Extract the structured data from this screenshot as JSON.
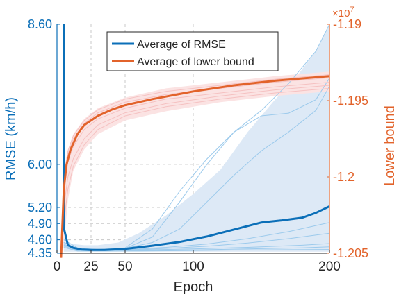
{
  "chart_data": {
    "type": "line",
    "xlabel": "Epoch",
    "ylabel_left": "RMSE (km/h)",
    "ylabel_right": "Lower bound",
    "right_axis_exponent": "×10",
    "right_axis_exponent_power": "7",
    "xlim": [
      0,
      200
    ],
    "ylim_left": [
      4.35,
      8.6
    ],
    "ylim_right": [
      -1.205,
      -1.19
    ],
    "x_ticks": [
      0,
      25,
      50,
      100,
      200
    ],
    "x_tick_labels": [
      "0",
      "25",
      "50",
      "100",
      "200"
    ],
    "y_left_ticks": [
      4.35,
      4.6,
      4.9,
      5.2,
      6.0,
      8.6
    ],
    "y_left_tick_labels": [
      "4.35",
      "4.60",
      "4.90",
      "5.20",
      "6.00",
      "8.60"
    ],
    "y_right_ticks": [
      -1.205,
      -1.2,
      -1.195,
      -1.19
    ],
    "y_right_tick_labels": [
      "-1.205",
      "-1.2",
      "-1.195",
      "-1.19"
    ],
    "grid": true,
    "legend_position": "top-center",
    "legend": [
      "Average of RMSE",
      "Average of lower bound"
    ],
    "colors": {
      "rmse": "#0b6fb8",
      "rmse_light": "#9ccaec",
      "rmse_band": "#dde9f6",
      "lower": "#e2632b",
      "lower_light": "#f5c1c1",
      "lower_band": "#fbe3e3",
      "grid": "#c8c8c8",
      "axis": "#262626"
    },
    "series": [
      {
        "name": "Average of RMSE",
        "axis": "left",
        "x": [
          5,
          8,
          12,
          18,
          25,
          35,
          50,
          70,
          90,
          110,
          130,
          150,
          165,
          180,
          190,
          200
        ],
        "y": [
          4.82,
          4.5,
          4.45,
          4.42,
          4.41,
          4.41,
          4.43,
          4.49,
          4.56,
          4.66,
          4.79,
          4.92,
          4.96,
          5.01,
          5.1,
          5.22
        ]
      },
      {
        "name": "Average of lower bound",
        "axis": "right",
        "x": [
          3,
          5,
          7,
          10,
          15,
          20,
          30,
          40,
          50,
          70,
          100,
          130,
          160,
          200
        ],
        "y": [
          -1.2053,
          -1.2008,
          -1.1992,
          -1.1982,
          -1.1972,
          -1.1966,
          -1.196,
          -1.1956,
          -1.1953,
          -1.1949,
          -1.1944,
          -1.194,
          -1.1937,
          -1.1934
        ]
      }
    ],
    "rmse_band": {
      "x": [
        5,
        8,
        12,
        20,
        30,
        45,
        60,
        80,
        100,
        120,
        140,
        160,
        175,
        190,
        200
      ],
      "lower": [
        4.38,
        4.38,
        4.38,
        4.38,
        4.38,
        4.38,
        4.38,
        4.38,
        4.38,
        4.38,
        4.38,
        4.38,
        4.38,
        4.38,
        4.38
      ],
      "upper": [
        4.62,
        4.55,
        4.52,
        4.5,
        4.5,
        4.55,
        4.72,
        5.05,
        5.45,
        5.9,
        6.6,
        7.2,
        7.6,
        8.1,
        8.6
      ]
    },
    "lower_band": {
      "x": [
        3,
        5,
        8,
        12,
        20,
        30,
        50,
        80,
        120,
        160,
        200
      ],
      "lower": [
        -1.2053,
        -1.2045,
        -1.2015,
        -1.1996,
        -1.1982,
        -1.1972,
        -1.1963,
        -1.1957,
        -1.1951,
        -1.1947,
        -1.1944
      ],
      "upper": [
        -1.2053,
        -1.1998,
        -1.1982,
        -1.1972,
        -1.1962,
        -1.1955,
        -1.1948,
        -1.1942,
        -1.1938,
        -1.1934,
        -1.1931
      ]
    },
    "rmse_runs": [
      {
        "x": [
          5,
          15,
          30,
          50,
          70,
          90,
          110,
          130,
          150,
          170,
          190,
          200
        ],
        "y": [
          4.6,
          4.45,
          4.42,
          4.45,
          4.8,
          5.5,
          6.1,
          6.6,
          7.0,
          7.5,
          8.1,
          8.6
        ]
      },
      {
        "x": [
          5,
          15,
          30,
          50,
          70,
          90,
          110,
          130,
          150,
          170,
          190,
          200
        ],
        "y": [
          4.55,
          4.43,
          4.41,
          4.44,
          4.65,
          5.3,
          6.0,
          6.6,
          6.9,
          6.95,
          7.2,
          7.6
        ]
      },
      {
        "x": [
          5,
          15,
          30,
          50,
          70,
          90,
          110,
          130,
          150,
          170,
          190,
          200
        ],
        "y": [
          4.55,
          4.43,
          4.41,
          4.44,
          4.55,
          4.8,
          5.3,
          5.8,
          6.25,
          6.6,
          7.0,
          7.45
        ]
      },
      {
        "x": [
          5,
          15,
          30,
          50,
          80,
          110,
          140,
          170,
          200
        ],
        "y": [
          4.55,
          4.42,
          4.41,
          4.42,
          4.46,
          4.52,
          4.62,
          4.75,
          4.92
        ]
      },
      {
        "x": [
          5,
          15,
          30,
          50,
          80,
          110,
          140,
          170,
          200
        ],
        "y": [
          4.52,
          4.41,
          4.4,
          4.41,
          4.44,
          4.48,
          4.54,
          4.62,
          4.72
        ]
      },
      {
        "x": [
          5,
          15,
          30,
          60,
          100,
          140,
          180,
          200
        ],
        "y": [
          4.5,
          4.41,
          4.4,
          4.41,
          4.43,
          4.46,
          4.5,
          4.53
        ]
      },
      {
        "x": [
          5,
          15,
          30,
          60,
          100,
          140,
          180,
          200
        ],
        "y": [
          4.48,
          4.4,
          4.39,
          4.4,
          4.41,
          4.43,
          4.45,
          4.47
        ]
      },
      {
        "x": [
          5,
          15,
          30,
          60,
          100,
          140,
          200
        ],
        "y": [
          4.46,
          4.39,
          4.39,
          4.39,
          4.4,
          4.41,
          4.42
        ]
      }
    ],
    "lower_runs": [
      {
        "x": [
          3,
          5,
          8,
          12,
          20,
          30,
          50,
          80,
          120,
          160,
          200
        ],
        "y": [
          -1.2053,
          -1.2002,
          -1.1985,
          -1.1975,
          -1.1965,
          -1.1958,
          -1.1951,
          -1.1946,
          -1.1942,
          -1.1938,
          -1.1935
        ]
      },
      {
        "x": [
          3,
          5,
          8,
          12,
          20,
          30,
          50,
          80,
          120,
          160,
          200
        ],
        "y": [
          -1.2053,
          -1.201,
          -1.199,
          -1.198,
          -1.1969,
          -1.1962,
          -1.1955,
          -1.1949,
          -1.1945,
          -1.1941,
          -1.1938
        ]
      },
      {
        "x": [
          3,
          5,
          8,
          12,
          20,
          30,
          50,
          80,
          120,
          160,
          200
        ],
        "y": [
          -1.2053,
          -1.202,
          -1.2,
          -1.1988,
          -1.1975,
          -1.1966,
          -1.1958,
          -1.1952,
          -1.1947,
          -1.1943,
          -1.194
        ]
      },
      {
        "x": [
          3,
          5,
          8,
          12,
          20,
          30,
          50,
          80,
          120,
          160,
          200
        ],
        "y": [
          -1.2053,
          -1.2,
          -1.1983,
          -1.1973,
          -1.1963,
          -1.1956,
          -1.1949,
          -1.1944,
          -1.194,
          -1.1936,
          -1.1933
        ]
      },
      {
        "x": [
          3,
          5,
          8,
          12,
          20,
          30,
          50,
          80,
          120,
          160,
          200
        ],
        "y": [
          -1.2053,
          -1.203,
          -1.2008,
          -1.1993,
          -1.1979,
          -1.1969,
          -1.196,
          -1.1954,
          -1.1949,
          -1.1945,
          -1.1942
        ]
      }
    ]
  }
}
